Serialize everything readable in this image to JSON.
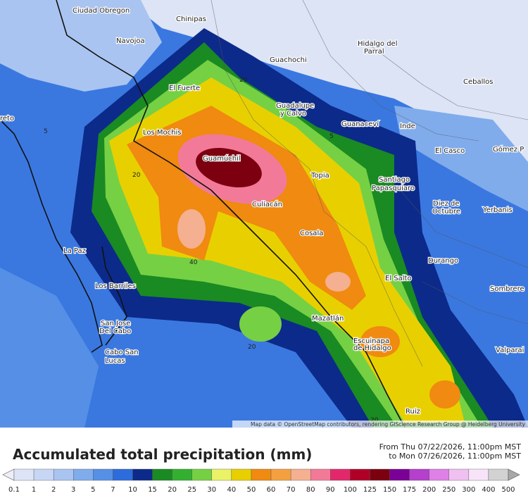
{
  "map": {
    "places": [
      "Ciudad Obregon",
      "Chinipas",
      "Navojoa",
      "Guachochi",
      "Hidalgo del",
      "Parral",
      "Ceballos",
      "El Fuerte",
      "Guadalupe",
      "y Calvo",
      "reto",
      "Los Mochis",
      "Guanaceví",
      "Inde",
      "El Casco",
      "Gómez P",
      "Guamúchil",
      "Topia",
      "Santiago",
      "Papasquiaro",
      "Culiacán",
      "Diez de",
      "Octubre",
      "Yerbanis",
      "Cosala",
      "La Paz",
      "Durango",
      "El Salto",
      "Los Barriles",
      "Sombrere",
      "Mazatlán",
      "San Jose",
      "Del Cabo",
      "Escuinapa",
      "de Hidalgo",
      "Cabo San",
      "Lucas",
      "Valparai",
      "Ruiz"
    ],
    "contour_labels": [
      "20",
      "5",
      "5",
      "20",
      "40",
      "20",
      "20"
    ],
    "attribution": "Map data © OpenStreetMap contributors, rendering GIScience Research Group @ Heidelberg University"
  },
  "header": {
    "title": "Accumulated total precipitation (mm)",
    "from": "From Thu 07/22/2026, 11:00pm MST",
    "to": "to Mon 07/26/2026, 11:00pm MST"
  },
  "legend": {
    "levels": [
      0.1,
      1,
      2,
      3,
      5,
      7,
      10,
      15,
      20,
      25,
      30,
      40,
      50,
      60,
      70,
      80,
      90,
      100,
      125,
      150,
      175,
      200,
      250,
      300,
      400,
      500
    ],
    "colors": [
      "#eeeef8",
      "#dde4f6",
      "#c6d6f4",
      "#a9c4f0",
      "#80acec",
      "#5690e6",
      "#2c6cdc",
      "#0c2a8a",
      "#1a8a22",
      "#34b030",
      "#76d044",
      "#eaf266",
      "#e8d000",
      "#f08a10",
      "#f4a040",
      "#f4b090",
      "#f27a98",
      "#e2286a",
      "#b00028",
      "#7c0010",
      "#7a0096",
      "#b440cc",
      "#de80e6",
      "#f0c0f2",
      "#f8e4f8",
      "#d2d2d2",
      "#a8a8a8"
    ]
  }
}
